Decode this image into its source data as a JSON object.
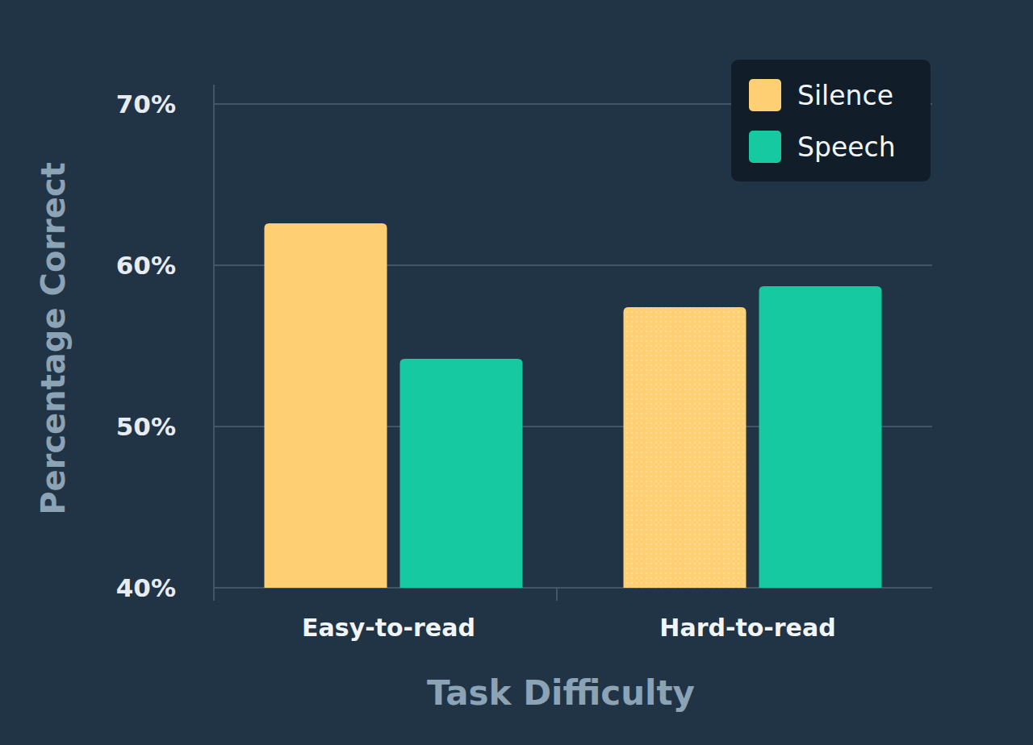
{
  "chart_data": {
    "type": "bar",
    "x_label": "Task Difficulty",
    "y_label": "Percentage Correct",
    "categories": [
      "Easy-to-read",
      "Hard-to-read"
    ],
    "series": [
      {
        "name": "Silence",
        "color": "#ffcf73",
        "values": [
          62.6,
          57.4
        ]
      },
      {
        "name": "Speech",
        "color": "#17c9a0",
        "values": [
          54.2,
          58.7
        ]
      }
    ],
    "ylim": [
      40,
      70
    ],
    "yticks": [
      {
        "value": 40,
        "label": "40%"
      },
      {
        "value": 50,
        "label": "50%"
      },
      {
        "value": 60,
        "label": "60%"
      },
      {
        "value": 70,
        "label": "70%"
      }
    ],
    "grid": true,
    "legend": "top-right"
  }
}
